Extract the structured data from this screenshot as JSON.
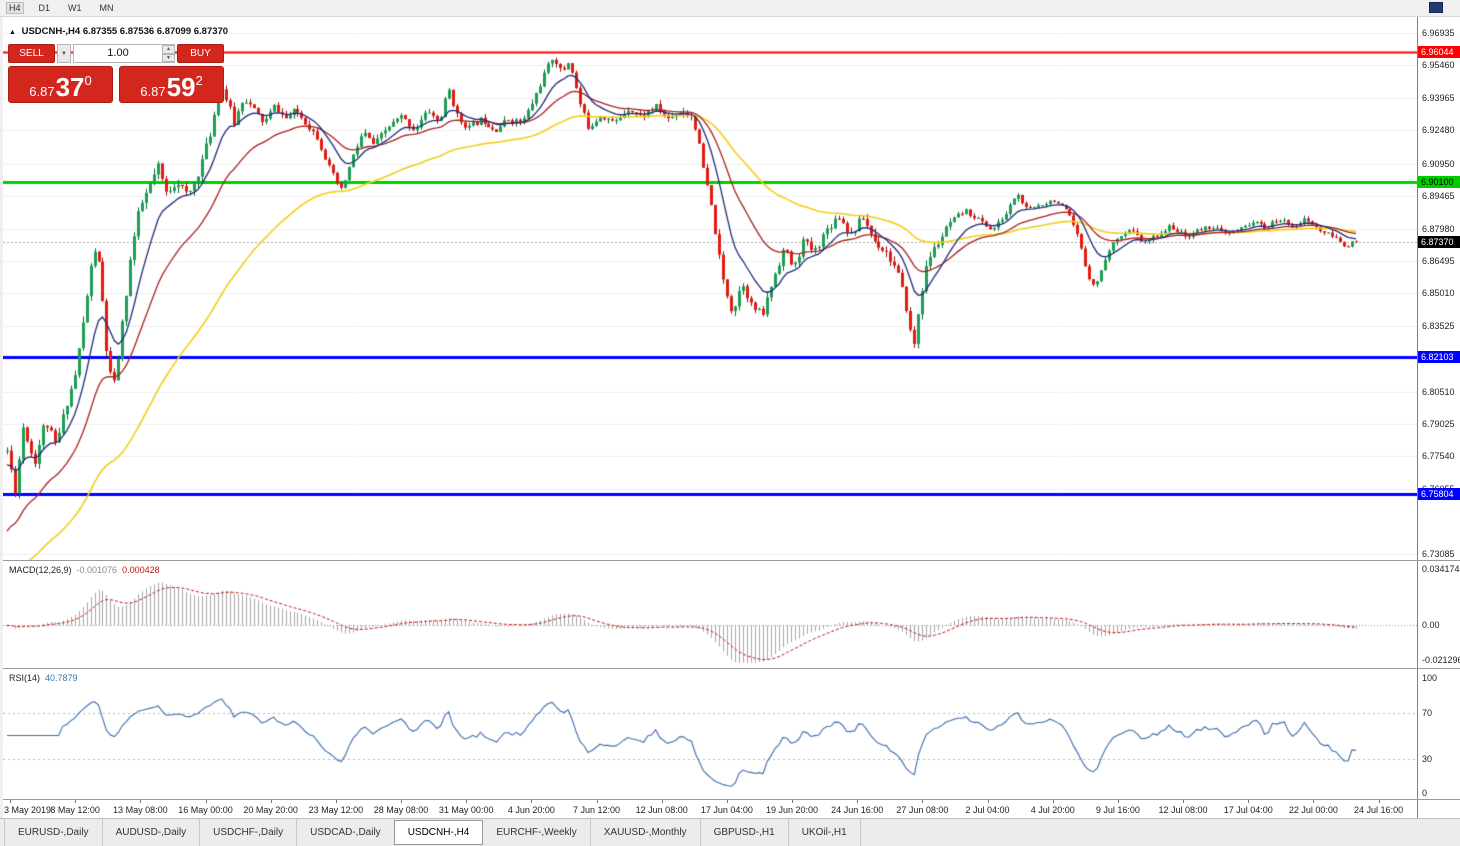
{
  "colors": {
    "up_fill": "#1d9e54",
    "up_stroke": "#0b6b36",
    "down_fill": "#e01b12",
    "down_stroke": "#9c120c",
    "ma_fast_blue": "#1f2d7a",
    "ma_mid_red": "#aa2222",
    "ma_slow_yellow": "#f2cf1d",
    "level_red": "#ff0000",
    "level_green": "#00cc00",
    "level_blue": "#0000ff",
    "current_price_line": "#aaaaaa",
    "macd_hist": "#a8a8a8",
    "macd_signal": "#c01818",
    "rsi_line": "#3e6fae",
    "grid": "#f0f0f0"
  },
  "toolbar": {
    "periods": [
      "H4",
      "D1",
      "W1",
      "MN"
    ]
  },
  "chart_header": {
    "collapse_icon": "▲",
    "symbol": "USDCNH-,H4",
    "ohlc_text": "6.87355 6.87536 6.87099 6.87370"
  },
  "trade_panel": {
    "sell_label": "SELL",
    "buy_label": "BUY",
    "volume_value": "1.00",
    "dropdown_icon": "▼",
    "spin_up_icon": "▲",
    "spin_down_icon": "▼",
    "sell_price": {
      "base": "6.87",
      "big": "37",
      "sup": "0"
    },
    "buy_price": {
      "base": "6.87",
      "big": "59",
      "sup": "2"
    }
  },
  "price_axis": {
    "ticks": [
      {
        "text": "6.96935",
        "price": 6.96935
      },
      {
        "text": "6.95460",
        "price": 6.9546
      },
      {
        "text": "6.93965",
        "price": 6.93965
      },
      {
        "text": "6.92480",
        "price": 6.9248
      },
      {
        "text": "6.90950",
        "price": 6.9095
      },
      {
        "text": "6.89465",
        "price": 6.89465
      },
      {
        "text": "6.87980",
        "price": 6.8798
      },
      {
        "text": "6.86495",
        "price": 6.86495
      },
      {
        "text": "6.85010",
        "price": 6.8501
      },
      {
        "text": "6.83525",
        "price": 6.83525
      },
      {
        "text": "6.80510",
        "price": 6.8051
      },
      {
        "text": "6.79025",
        "price": 6.79025
      },
      {
        "text": "6.77540",
        "price": 6.7754
      },
      {
        "text": "6.76055",
        "price": 6.76055
      },
      {
        "text": "6.73085",
        "price": 6.73085
      }
    ],
    "badges": [
      {
        "text": "6.96044",
        "price": 6.96044,
        "bg": "#ff0000",
        "fg": "#ffffff"
      },
      {
        "text": "6.90100",
        "price": 6.901,
        "bg": "#00cc00",
        "fg": "#000000"
      },
      {
        "text": "6.87370",
        "price": 6.8737,
        "bg": "#000000",
        "fg": "#ffffff"
      },
      {
        "text": "6.82103",
        "price": 6.82103,
        "bg": "#0000ff",
        "fg": "#ffffff"
      },
      {
        "text": "6.75804",
        "price": 6.75804,
        "bg": "#0000ff",
        "fg": "#ffffff"
      }
    ]
  },
  "chart_data": {
    "type": "candlestick",
    "symbol": "USDCNH",
    "timeframe": "H4",
    "visible_range": {
      "from": "3 May 2019",
      "to": "24 Jul 2019"
    },
    "ohlc_current": {
      "open": 6.87355,
      "high": 6.87536,
      "low": 6.87099,
      "close": 6.8737
    },
    "y_range": [
      6.73085,
      6.96935
    ],
    "levels": [
      {
        "price": 6.96044,
        "color": "red",
        "width": 2
      },
      {
        "price": 6.901,
        "color": "green",
        "width": 3
      },
      {
        "price": 6.82103,
        "color": "blue",
        "width": 3
      },
      {
        "price": 6.75804,
        "color": "blue",
        "width": 3
      }
    ],
    "current_price": 6.8737,
    "candle_count": 340,
    "moving_averages": [
      {
        "name": "fast",
        "period": 10,
        "color_key": "ma_fast_blue"
      },
      {
        "name": "mid",
        "period": 24,
        "color_key": "ma_mid_red"
      },
      {
        "name": "slow",
        "period": 60,
        "color_key": "ma_slow_yellow"
      }
    ],
    "price_path_anchors": [
      [
        0,
        6.778
      ],
      [
        0.006,
        6.76
      ],
      [
        0.012,
        6.79
      ],
      [
        0.02,
        6.772
      ],
      [
        0.028,
        6.792
      ],
      [
        0.036,
        6.78
      ],
      [
        0.044,
        6.8
      ],
      [
        0.05,
        6.812
      ],
      [
        0.056,
        6.836
      ],
      [
        0.062,
        6.862
      ],
      [
        0.066,
        6.873
      ],
      [
        0.07,
        6.852
      ],
      [
        0.075,
        6.815
      ],
      [
        0.08,
        6.808
      ],
      [
        0.086,
        6.838
      ],
      [
        0.092,
        6.868
      ],
      [
        0.098,
        6.888
      ],
      [
        0.105,
        6.898
      ],
      [
        0.112,
        6.908
      ],
      [
        0.118,
        6.896
      ],
      [
        0.126,
        6.902
      ],
      [
        0.134,
        6.894
      ],
      [
        0.142,
        6.906
      ],
      [
        0.15,
        6.922
      ],
      [
        0.158,
        6.946
      ],
      [
        0.163,
        6.938
      ],
      [
        0.168,
        6.928
      ],
      [
        0.175,
        6.94
      ],
      [
        0.183,
        6.934
      ],
      [
        0.19,
        6.928
      ],
      [
        0.198,
        6.936
      ],
      [
        0.206,
        6.93
      ],
      [
        0.214,
        6.934
      ],
      [
        0.222,
        6.928
      ],
      [
        0.23,
        6.922
      ],
      [
        0.24,
        6.906
      ],
      [
        0.248,
        6.897
      ],
      [
        0.256,
        6.912
      ],
      [
        0.264,
        6.924
      ],
      [
        0.272,
        6.918
      ],
      [
        0.282,
        6.926
      ],
      [
        0.292,
        6.931
      ],
      [
        0.302,
        6.925
      ],
      [
        0.312,
        6.934
      ],
      [
        0.32,
        6.928
      ],
      [
        0.327,
        6.944
      ],
      [
        0.334,
        6.93
      ],
      [
        0.342,
        6.926
      ],
      [
        0.352,
        6.93
      ],
      [
        0.362,
        6.925
      ],
      [
        0.372,
        6.93
      ],
      [
        0.382,
        6.928
      ],
      [
        0.39,
        6.938
      ],
      [
        0.398,
        6.95
      ],
      [
        0.405,
        6.959
      ],
      [
        0.411,
        6.951
      ],
      [
        0.417,
        6.957
      ],
      [
        0.424,
        6.938
      ],
      [
        0.431,
        6.926
      ],
      [
        0.44,
        6.932
      ],
      [
        0.45,
        6.928
      ],
      [
        0.46,
        6.935
      ],
      [
        0.47,
        6.931
      ],
      [
        0.48,
        6.936
      ],
      [
        0.49,
        6.93
      ],
      [
        0.5,
        6.934
      ],
      [
        0.509,
        6.931
      ],
      [
        0.516,
        6.908
      ],
      [
        0.523,
        6.887
      ],
      [
        0.53,
        6.858
      ],
      [
        0.538,
        6.841
      ],
      [
        0.545,
        6.856
      ],
      [
        0.552,
        6.844
      ],
      [
        0.56,
        6.84
      ],
      [
        0.568,
        6.857
      ],
      [
        0.576,
        6.871
      ],
      [
        0.583,
        6.861
      ],
      [
        0.59,
        6.874
      ],
      [
        0.598,
        6.869
      ],
      [
        0.607,
        6.879
      ],
      [
        0.616,
        6.886
      ],
      [
        0.625,
        6.877
      ],
      [
        0.634,
        6.885
      ],
      [
        0.643,
        6.874
      ],
      [
        0.652,
        6.869
      ],
      [
        0.66,
        6.86
      ],
      [
        0.666,
        6.846
      ],
      [
        0.672,
        6.824
      ],
      [
        0.677,
        6.848
      ],
      [
        0.683,
        6.866
      ],
      [
        0.69,
        6.873
      ],
      [
        0.7,
        6.883
      ],
      [
        0.71,
        6.888
      ],
      [
        0.72,
        6.884
      ],
      [
        0.73,
        6.879
      ],
      [
        0.74,
        6.886
      ],
      [
        0.748,
        6.896
      ],
      [
        0.756,
        6.888
      ],
      [
        0.766,
        6.891
      ],
      [
        0.776,
        6.893
      ],
      [
        0.786,
        6.887
      ],
      [
        0.794,
        6.876
      ],
      [
        0.801,
        6.859
      ],
      [
        0.807,
        6.853
      ],
      [
        0.814,
        6.866
      ],
      [
        0.823,
        6.876
      ],
      [
        0.833,
        6.879
      ],
      [
        0.843,
        6.873
      ],
      [
        0.853,
        6.877
      ],
      [
        0.863,
        6.881
      ],
      [
        0.873,
        6.876
      ],
      [
        0.883,
        6.879
      ],
      [
        0.893,
        6.881
      ],
      [
        0.903,
        6.877
      ],
      [
        0.913,
        6.879
      ],
      [
        0.923,
        6.883
      ],
      [
        0.933,
        6.88
      ],
      [
        0.943,
        6.884
      ],
      [
        0.953,
        6.881
      ],
      [
        0.963,
        6.884
      ],
      [
        0.973,
        6.879
      ],
      [
        0.983,
        6.876
      ],
      [
        0.992,
        6.872
      ],
      [
        1,
        6.8737
      ]
    ]
  },
  "macd_panel": {
    "name": "MACD(12,26,9)",
    "value_main": "-0.001076",
    "value_signal": "0.000428",
    "params": {
      "fast": 12,
      "slow": 26,
      "signal": 9
    },
    "axis": [
      {
        "text": "0.034174",
        "value": 0.034174
      },
      {
        "text": "0.00",
        "value": 0
      },
      {
        "text": "-0.021296",
        "value": -0.021296
      }
    ]
  },
  "rsi_panel": {
    "name": "RSI(14)",
    "value": "40.7879",
    "period": 14,
    "levels": [
      70,
      30
    ],
    "axis": [
      {
        "text": "100",
        "value": 100
      },
      {
        "text": "70",
        "value": 70
      },
      {
        "text": "30",
        "value": 30
      },
      {
        "text": "0",
        "value": 0
      }
    ]
  },
  "time_axis": {
    "labels": [
      "3 May 2019",
      "8 May 12:00",
      "13 May 08:00",
      "16 May 00:00",
      "20 May 20:00",
      "23 May 12:00",
      "28 May 08:00",
      "31 May 00:00",
      "4 Jun 20:00",
      "7 Jun 12:00",
      "12 Jun 08:00",
      "17 Jun 04:00",
      "19 Jun 20:00",
      "24 Jun 16:00",
      "27 Jun 08:00",
      "2 Jul 04:00",
      "4 Jul 20:00",
      "9 Jul 16:00",
      "12 Jul 08:00",
      "17 Jul 04:00",
      "22 Jul 00:00",
      "24 Jul 16:00"
    ]
  },
  "tabs": {
    "items": [
      "EURUSD-,Daily",
      "AUDUSD-,Daily",
      "USDCHF-,Daily",
      "USDCAD-,Daily",
      "USDCNH-,H4",
      "EURCHF-,Weekly",
      "XAUUSD-,Monthly",
      "GBPUSD-,H1",
      "UKOil-,H1"
    ],
    "active_index": 4
  }
}
